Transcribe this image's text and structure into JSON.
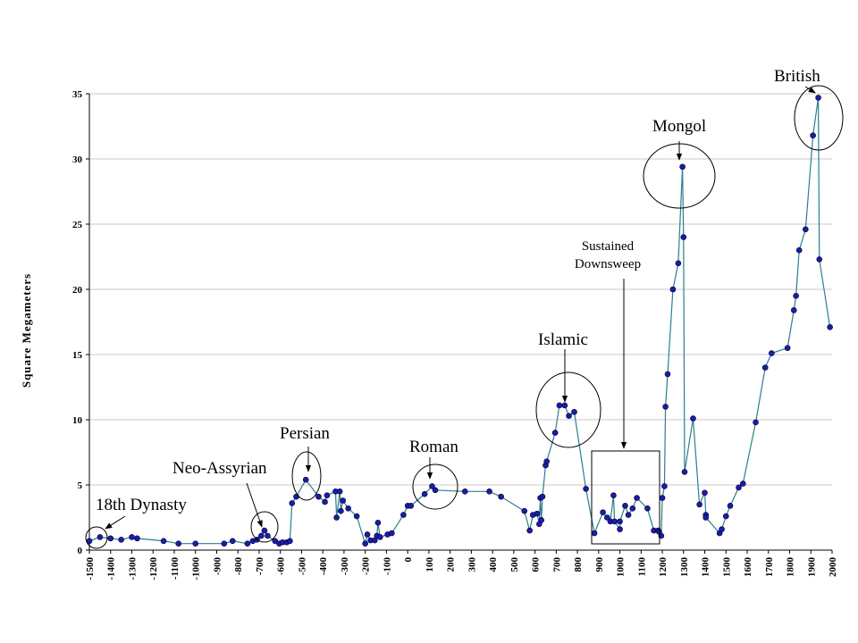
{
  "chart_data": {
    "type": "line",
    "y_label": "Square Megameters",
    "xlim": [
      -1500,
      2000
    ],
    "xticks": [
      -1500,
      -1400,
      -1300,
      -1200,
      -1100,
      -1000,
      -900,
      -800,
      -700,
      -600,
      -500,
      -400,
      -300,
      -200,
      -100,
      0,
      100,
      200,
      300,
      400,
      500,
      600,
      700,
      800,
      900,
      1000,
      1100,
      1200,
      1300,
      1400,
      1500,
      1600,
      1700,
      1800,
      1900,
      2000
    ],
    "ylim": [
      0,
      35
    ],
    "yticks": [
      0,
      5,
      10,
      15,
      20,
      25,
      30,
      35
    ],
    "grid": true,
    "series": [
      {
        "color": "#2b7f8c",
        "marker_color": "#1c1ca8",
        "x": [
          -1500,
          -1450,
          -1400,
          -1350,
          -1300,
          -1275,
          -1150,
          -1080,
          -1000,
          -865,
          -825,
          -755,
          -730,
          -710,
          -690,
          -675,
          -660,
          -625,
          -605,
          -590,
          -570,
          -555,
          -545,
          -525,
          -480,
          -420,
          -390,
          -380,
          -340,
          -335,
          -320,
          -315,
          -305,
          -280,
          -240,
          -200,
          -190,
          -175,
          -155,
          -145,
          -140,
          -130,
          -95,
          -75,
          -20,
          0,
          15,
          80,
          115,
          130,
          270,
          385,
          440,
          550,
          575,
          590,
          610,
          620,
          625,
          630,
          635,
          650,
          655,
          695,
          715,
          740,
          760,
          785,
          840,
          880,
          920,
          940,
          955,
          970,
          975,
          1000,
          1000,
          1025,
          1040,
          1060,
          1080,
          1130,
          1160,
          1180,
          1185,
          1195,
          1200,
          1210,
          1215,
          1225,
          1250,
          1275,
          1295,
          1300,
          1305,
          1345,
          1375,
          1400,
          1405,
          1405,
          1470,
          1480,
          1500,
          1520,
          1560,
          1580,
          1640,
          1685,
          1715,
          1790,
          1820,
          1830,
          1845,
          1875,
          1910,
          1935,
          1940,
          1990
        ],
        "values": [
          0.7,
          1.0,
          0.9,
          0.8,
          1.0,
          0.9,
          0.7,
          0.5,
          0.5,
          0.5,
          0.7,
          0.5,
          0.7,
          0.8,
          1.1,
          1.5,
          1.1,
          0.7,
          0.5,
          0.6,
          0.6,
          0.7,
          3.6,
          4.1,
          5.4,
          4.1,
          3.7,
          4.2,
          4.5,
          2.5,
          4.5,
          3.0,
          3.8,
          3.2,
          2.6,
          0.5,
          1.2,
          0.75,
          0.75,
          1.1,
          2.1,
          1.0,
          1.2,
          1.3,
          2.7,
          3.4,
          3.4,
          4.3,
          4.9,
          4.6,
          4.5,
          4.5,
          4.1,
          3.0,
          1.5,
          2.7,
          2.8,
          2.0,
          4.0,
          2.3,
          4.1,
          6.5,
          6.8,
          9.0,
          11.1,
          11.1,
          10.3,
          10.6,
          4.7,
          1.3,
          2.9,
          2.5,
          2.2,
          4.2,
          2.2,
          1.6,
          2.2,
          3.4,
          2.7,
          3.2,
          4.0,
          3.2,
          1.5,
          1.5,
          1.4,
          1.1,
          4.0,
          4.9,
          11.0,
          13.5,
          20.0,
          22.0,
          29.4,
          24.0,
          6.0,
          10.1,
          3.5,
          4.4,
          2.7,
          2.5,
          1.3,
          1.6,
          2.6,
          3.4,
          4.8,
          5.1,
          9.8,
          14.0,
          15.1,
          15.5,
          18.4,
          19.5,
          23.0,
          24.6,
          31.8,
          34.7,
          22.3,
          17.1
        ]
      }
    ],
    "annotations": [
      {
        "lines": [
          "18th Dynasty"
        ]
      },
      {
        "lines": [
          "Neo-Assyrian"
        ]
      },
      {
        "lines": [
          "Persian"
        ]
      },
      {
        "lines": [
          "Roman"
        ]
      },
      {
        "lines": [
          "Islamic"
        ]
      },
      {
        "lines": [
          "Sustained",
          "Downsweep"
        ]
      },
      {
        "lines": [
          "Mongol"
        ]
      },
      {
        "lines": [
          "British"
        ]
      }
    ]
  }
}
